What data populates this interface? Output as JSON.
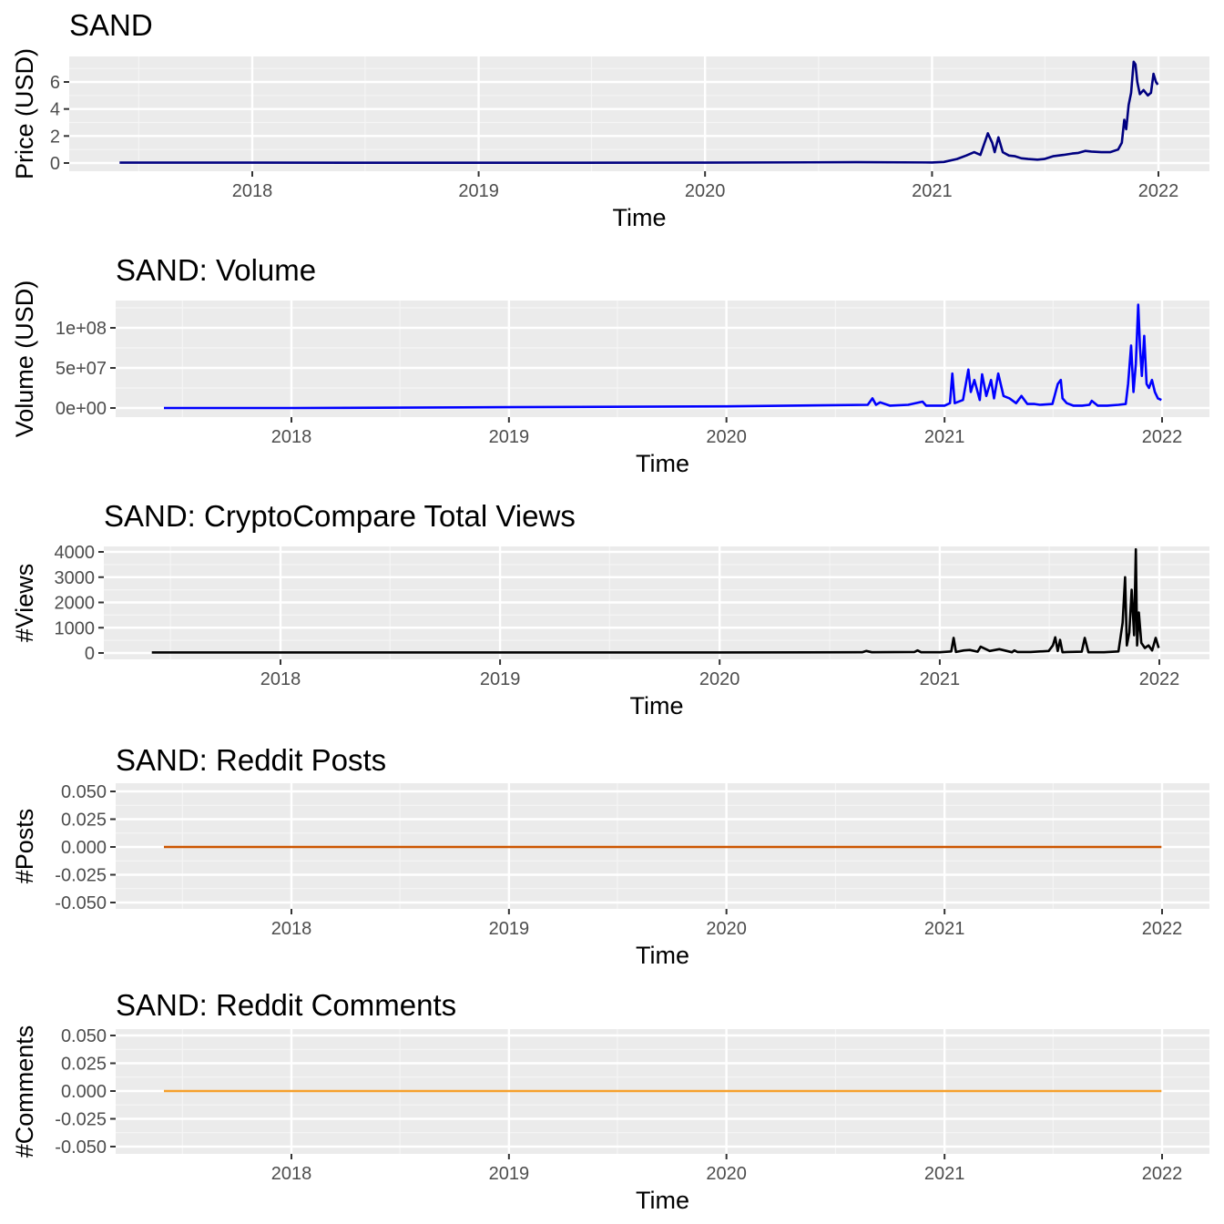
{
  "chart_data": [
    {
      "type": "line",
      "title": "SAND",
      "xlabel": "Time",
      "ylabel": "Price (USD)",
      "x_ticks": [
        "2018",
        "2019",
        "2020",
        "2021",
        "2022"
      ],
      "y_ticks": [
        "0",
        "2",
        "4",
        "6"
      ],
      "ylim": [
        -0.3,
        7.7
      ],
      "grid": true,
      "line_color": "#000080",
      "series": [
        {
          "x": [
            "2017-06-01",
            "2018-01-01",
            "2019-01-01",
            "2020-01-01",
            "2020-09-01",
            "2021-01-01",
            "2021-01-20",
            "2021-02-10",
            "2021-02-25",
            "2021-03-10",
            "2021-03-20",
            "2021-04-01",
            "2021-04-08",
            "2021-04-12",
            "2021-04-18",
            "2021-04-25",
            "2021-05-05",
            "2021-05-15",
            "2021-05-25",
            "2021-06-05",
            "2021-06-20",
            "2021-07-01",
            "2021-07-15",
            "2021-08-01",
            "2021-08-15",
            "2021-08-25",
            "2021-09-05",
            "2021-09-15",
            "2021-10-01",
            "2021-10-15",
            "2021-10-28",
            "2021-11-03",
            "2021-11-07",
            "2021-11-10",
            "2021-11-14",
            "2021-11-18",
            "2021-11-22",
            "2021-11-25",
            "2021-11-28",
            "2021-12-02",
            "2021-12-08",
            "2021-12-15",
            "2021-12-20",
            "2021-12-24",
            "2021-12-28",
            "2021-12-31"
          ],
          "y": [
            0.03,
            0.03,
            0.02,
            0.03,
            0.06,
            0.04,
            0.08,
            0.3,
            0.55,
            0.8,
            0.6,
            2.2,
            1.5,
            0.8,
            1.9,
            0.8,
            0.55,
            0.5,
            0.35,
            0.3,
            0.25,
            0.3,
            0.5,
            0.6,
            0.7,
            0.75,
            0.9,
            0.85,
            0.8,
            0.8,
            1.0,
            1.5,
            3.2,
            2.5,
            4.3,
            5.2,
            7.5,
            7.3,
            6.0,
            5.1,
            5.4,
            5.0,
            5.2,
            6.6,
            6.0,
            5.8
          ]
        }
      ]
    },
    {
      "type": "line",
      "title": "SAND: Volume",
      "xlabel": "Time",
      "ylabel": "Volume (USD)",
      "x_ticks": [
        "2018",
        "2019",
        "2020",
        "2021",
        "2022"
      ],
      "y_ticks": [
        "0e+00",
        "5e+07",
        "1e+08"
      ],
      "ylim": [
        -5000000.0,
        133000000.0
      ],
      "grid": true,
      "line_color": "#0000ff",
      "series": [
        {
          "x": [
            "2017-06-01",
            "2018-01-01",
            "2019-01-01",
            "2020-01-01",
            "2020-08-25",
            "2020-09-02",
            "2020-09-08",
            "2020-09-15",
            "2020-10-01",
            "2020-11-01",
            "2020-11-25",
            "2020-12-01",
            "2021-01-01",
            "2021-01-10",
            "2021-01-14",
            "2021-01-18",
            "2021-02-01",
            "2021-02-10",
            "2021-02-14",
            "2021-02-20",
            "2021-03-01",
            "2021-03-05",
            "2021-03-12",
            "2021-03-20",
            "2021-03-25",
            "2021-04-01",
            "2021-04-10",
            "2021-04-20",
            "2021-05-01",
            "2021-05-10",
            "2021-05-20",
            "2021-06-01",
            "2021-06-10",
            "2021-07-01",
            "2021-07-10",
            "2021-07-15",
            "2021-07-18",
            "2021-07-25",
            "2021-08-05",
            "2021-08-20",
            "2021-09-01",
            "2021-09-05",
            "2021-09-15",
            "2021-10-01",
            "2021-10-20",
            "2021-11-01",
            "2021-11-05",
            "2021-11-10",
            "2021-11-14",
            "2021-11-18",
            "2021-11-22",
            "2021-11-25",
            "2021-11-28",
            "2021-12-02",
            "2021-12-06",
            "2021-12-10",
            "2021-12-15",
            "2021-12-20",
            "2021-12-25",
            "2021-12-31"
          ],
          "y": [
            0,
            0,
            1000000.0,
            2000000.0,
            4000000.0,
            12000000.0,
            4000000.0,
            7000000.0,
            3000000.0,
            4000000.0,
            8000000.0,
            3000000.0,
            3000000.0,
            6000000.0,
            43000000.0,
            6000000.0,
            10000000.0,
            48000000.0,
            20000000.0,
            35000000.0,
            10000000.0,
            42000000.0,
            15000000.0,
            35000000.0,
            12000000.0,
            43000000.0,
            15000000.0,
            12000000.0,
            6000000.0,
            15000000.0,
            5000000.0,
            5000000.0,
            4000000.0,
            5000000.0,
            30000000.0,
            35000000.0,
            12000000.0,
            6000000.0,
            3000000.0,
            3000000.0,
            4000000.0,
            9000000.0,
            3000000.0,
            3000000.0,
            4000000.0,
            5000000.0,
            30000000.0,
            78000000.0,
            20000000.0,
            55000000.0,
            129000000.0,
            75000000.0,
            40000000.0,
            90000000.0,
            30000000.0,
            25000000.0,
            35000000.0,
            20000000.0,
            12000000.0,
            10000000.0
          ]
        }
      ]
    },
    {
      "type": "line",
      "title": "SAND: CryptoCompare Total Views",
      "xlabel": "Time",
      "ylabel": "#Views",
      "x_ticks": [
        "2018",
        "2019",
        "2020",
        "2021",
        "2022"
      ],
      "y_ticks": [
        "0",
        "1000",
        "2000",
        "3000",
        "4000"
      ],
      "ylim": [
        -120,
        4200
      ],
      "grid": true,
      "line_color": "#000000",
      "series": [
        {
          "x": [
            "2017-06-01",
            "2018-01-01",
            "2019-01-01",
            "2020-01-01",
            "2020-08-25",
            "2020-09-01",
            "2020-09-10",
            "2020-11-20",
            "2020-11-25",
            "2020-12-01",
            "2021-01-01",
            "2021-01-20",
            "2021-01-24",
            "2021-01-28",
            "2021-02-10",
            "2021-02-20",
            "2021-03-05",
            "2021-03-10",
            "2021-03-25",
            "2021-04-10",
            "2021-05-01",
            "2021-05-05",
            "2021-05-10",
            "2021-06-01",
            "2021-07-01",
            "2021-07-08",
            "2021-07-12",
            "2021-07-16",
            "2021-07-20",
            "2021-07-24",
            "2021-08-01",
            "2021-08-25",
            "2021-08-30",
            "2021-09-05",
            "2021-10-01",
            "2021-10-25",
            "2021-11-01",
            "2021-11-05",
            "2021-11-08",
            "2021-11-12",
            "2021-11-16",
            "2021-11-20",
            "2021-11-23",
            "2021-11-25",
            "2021-11-28",
            "2021-12-02",
            "2021-12-08",
            "2021-12-14",
            "2021-12-20",
            "2021-12-26",
            "2021-12-31"
          ],
          "y": [
            20,
            20,
            20,
            20,
            30,
            80,
            30,
            40,
            100,
            30,
            30,
            60,
            600,
            40,
            100,
            120,
            50,
            250,
            80,
            150,
            30,
            100,
            40,
            40,
            80,
            300,
            620,
            80,
            520,
            30,
            40,
            50,
            600,
            30,
            30,
            60,
            1200,
            3000,
            300,
            800,
            2500,
            700,
            4100,
            300,
            1600,
            400,
            200,
            300,
            100,
            600,
            200
          ]
        }
      ]
    },
    {
      "type": "line",
      "title": "SAND: Reddit Posts",
      "xlabel": "Time",
      "ylabel": "#Posts",
      "x_ticks": [
        "2018",
        "2019",
        "2020",
        "2021",
        "2022"
      ],
      "y_ticks": [
        "-0.050",
        "-0.025",
        "0.000",
        "0.025",
        "0.050"
      ],
      "ylim": [
        -0.05,
        0.05
      ],
      "grid": true,
      "line_color": "#cc5500",
      "series": [
        {
          "x": [
            "2017-06-01",
            "2021-12-31"
          ],
          "y": [
            0,
            0
          ]
        }
      ]
    },
    {
      "type": "line",
      "title": "SAND: Reddit Comments",
      "xlabel": "Time",
      "ylabel": "#Comments",
      "x_ticks": [
        "2018",
        "2019",
        "2020",
        "2021",
        "2022"
      ],
      "y_ticks": [
        "-0.050",
        "-0.025",
        "0.000",
        "0.025",
        "0.050"
      ],
      "ylim": [
        -0.05,
        0.05
      ],
      "grid": true,
      "line_color": "#f5a02c",
      "series": [
        {
          "x": [
            "2017-06-01",
            "2021-12-31"
          ],
          "y": [
            0,
            0
          ]
        }
      ]
    }
  ]
}
